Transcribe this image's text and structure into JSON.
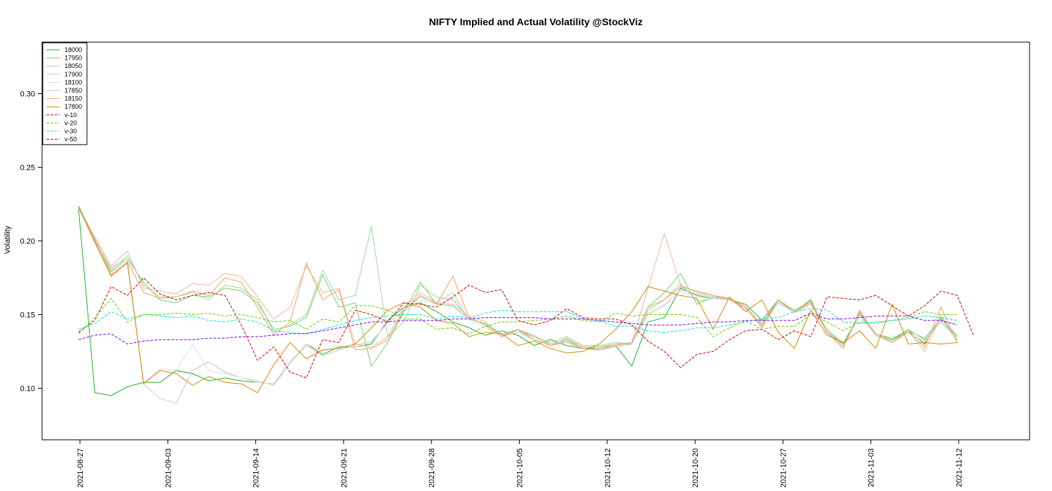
{
  "chart_data": {
    "type": "line",
    "title": "NIFTY Implied and Actual Volatility @StockViz",
    "xlabel": "",
    "ylabel": "Volatility",
    "ylim": [
      0.065,
      0.335
    ],
    "yticks": [
      "0.10",
      "0.15",
      "0.20",
      "0.25",
      "0.30"
    ],
    "x_tick_labels": [
      "2021-08-27",
      "2021-09-03",
      "2021-09-14",
      "2021-09-21",
      "2021-09-28",
      "2021-10-05",
      "2021-10-12",
      "2021-10-20",
      "2021-10-27",
      "2021-11-03",
      "2021-11-12"
    ],
    "legend_position": "top-left",
    "grid": false,
    "series": [
      {
        "name": "18000",
        "color": "#1db32a",
        "dash": "",
        "values": [
          0.222,
          0.097,
          0.095,
          0.101,
          0.104,
          0.104,
          0.112,
          0.11,
          0.105,
          0.107,
          0.105,
          0.104,
          0.103,
          0.118,
          0.13,
          0.123,
          0.128,
          0.128,
          0.13,
          0.146,
          0.155,
          0.158,
          0.152,
          0.145,
          0.141,
          0.136,
          0.139,
          0.136,
          0.129,
          0.133,
          0.129,
          0.127,
          0.127,
          0.129,
          0.115,
          0.145,
          0.148,
          0.168,
          0.163,
          0.161,
          0.16,
          0.157,
          0.146,
          0.16,
          0.152,
          0.16,
          0.138,
          0.13,
          0.15,
          0.137,
          0.133,
          0.139,
          0.13,
          0.148,
          0.133
        ]
      },
      {
        "name": "17950",
        "color": "#73d173",
        "dash": "",
        "values": [
          0.223,
          0.2,
          0.179,
          0.188,
          0.172,
          0.16,
          0.158,
          0.163,
          0.162,
          0.168,
          0.166,
          0.158,
          0.14,
          0.142,
          0.148,
          0.177,
          0.155,
          0.158,
          0.115,
          0.131,
          0.152,
          0.172,
          0.157,
          0.156,
          0.147,
          0.144,
          0.136,
          0.139,
          0.135,
          0.13,
          0.133,
          0.128,
          0.128,
          0.13,
          0.13,
          0.155,
          0.165,
          0.178,
          0.157,
          0.162,
          0.161,
          0.155,
          0.143,
          0.159,
          0.152,
          0.159,
          0.139,
          0.13,
          0.151,
          0.137,
          0.133,
          0.14,
          0.133,
          0.148,
          0.135
        ]
      },
      {
        "name": "18050",
        "color": "#9ad89a",
        "dash": "",
        "values": [
          0.224,
          0.202,
          0.18,
          0.19,
          0.17,
          0.162,
          0.162,
          0.165,
          0.16,
          0.17,
          0.168,
          0.16,
          0.138,
          0.143,
          0.15,
          0.18,
          0.16,
          0.163,
          0.21,
          0.135,
          0.145,
          0.17,
          0.162,
          0.16,
          0.147,
          0.144,
          0.137,
          0.14,
          0.135,
          0.131,
          0.135,
          0.129,
          0.129,
          0.131,
          0.13,
          0.153,
          0.16,
          0.171,
          0.159,
          0.161,
          0.161,
          0.155,
          0.144,
          0.16,
          0.153,
          0.159,
          0.14,
          0.131,
          0.15,
          0.137,
          0.134,
          0.139,
          0.134,
          0.147,
          0.136
        ]
      },
      {
        "name": "17900",
        "color": "#c8c8c8",
        "dash": "",
        "values": [
          0.222,
          0.201,
          0.182,
          0.188,
          0.103,
          0.093,
          0.09,
          0.112,
          0.118,
          0.111,
          0.107,
          0.105,
          0.102,
          0.117,
          0.129,
          0.122,
          0.126,
          0.129,
          0.132,
          0.144,
          0.153,
          0.162,
          0.158,
          0.165,
          0.146,
          0.142,
          0.135,
          0.138,
          0.133,
          0.129,
          0.131,
          0.127,
          0.126,
          0.128,
          0.13,
          0.15,
          0.156,
          0.167,
          0.164,
          0.162,
          0.16,
          0.155,
          0.142,
          0.158,
          0.151,
          0.157,
          0.138,
          0.129,
          0.149,
          0.136,
          0.132,
          0.138,
          0.132,
          0.145,
          0.133
        ]
      },
      {
        "name": "18100",
        "color": "#dcdcdc",
        "dash": "",
        "values": [
          0.222,
          0.202,
          0.181,
          0.188,
          0.104,
          0.113,
          0.112,
          0.13,
          0.112,
          0.11,
          0.107,
          0.104,
          0.103,
          0.118,
          0.13,
          0.125,
          0.129,
          0.128,
          0.131,
          0.145,
          0.152,
          0.16,
          0.157,
          0.162,
          0.146,
          0.142,
          0.135,
          0.139,
          0.133,
          0.13,
          0.132,
          0.128,
          0.127,
          0.129,
          0.131,
          0.151,
          0.157,
          0.166,
          0.162,
          0.161,
          0.16,
          0.156,
          0.143,
          0.159,
          0.151,
          0.158,
          0.139,
          0.128,
          0.15,
          0.136,
          0.131,
          0.138,
          0.131,
          0.146,
          0.133
        ]
      },
      {
        "name": "17850",
        "color": "#eeb5a0",
        "dash": "",
        "values": [
          0.222,
          0.203,
          0.183,
          0.193,
          0.168,
          0.166,
          0.164,
          0.171,
          0.17,
          0.178,
          0.176,
          0.162,
          0.147,
          0.155,
          0.183,
          0.165,
          0.168,
          0.13,
          0.128,
          0.135,
          0.155,
          0.165,
          0.158,
          0.157,
          0.149,
          0.145,
          0.136,
          0.14,
          0.136,
          0.129,
          0.134,
          0.128,
          0.127,
          0.13,
          0.131,
          0.168,
          0.205,
          0.17,
          0.165,
          0.163,
          0.16,
          0.154,
          0.143,
          0.16,
          0.152,
          0.159,
          0.138,
          0.127,
          0.152,
          0.137,
          0.132,
          0.139,
          0.125,
          0.15,
          0.132
        ]
      },
      {
        "name": "18150",
        "color": "#f0a060",
        "dash": "",
        "values": [
          0.223,
          0.201,
          0.177,
          0.186,
          0.165,
          0.161,
          0.162,
          0.166,
          0.163,
          0.175,
          0.172,
          0.155,
          0.136,
          0.145,
          0.185,
          0.16,
          0.167,
          0.126,
          0.127,
          0.133,
          0.153,
          0.163,
          0.157,
          0.176,
          0.148,
          0.143,
          0.135,
          0.14,
          0.133,
          0.129,
          0.132,
          0.127,
          0.126,
          0.129,
          0.131,
          0.155,
          0.16,
          0.169,
          0.166,
          0.163,
          0.161,
          0.155,
          0.141,
          0.16,
          0.152,
          0.158,
          0.138,
          0.127,
          0.153,
          0.136,
          0.131,
          0.138,
          0.128,
          0.155,
          0.131
        ]
      },
      {
        "name": "17800",
        "color": "#d98600",
        "dash": "",
        "values": [
          0.223,
          0.199,
          0.176,
          0.185,
          0.103,
          0.112,
          0.11,
          0.102,
          0.108,
          0.104,
          0.103,
          0.097,
          0.116,
          0.131,
          0.12,
          0.126,
          0.127,
          0.13,
          0.141,
          0.153,
          0.158,
          0.155,
          0.146,
          0.144,
          0.135,
          0.138,
          0.137,
          0.129,
          0.132,
          0.127,
          0.124,
          0.125,
          0.13,
          0.14,
          0.152,
          0.169,
          0.166,
          0.163,
          0.161,
          0.14,
          0.162,
          0.152,
          0.16,
          0.138,
          0.127,
          0.153,
          0.136,
          0.131,
          0.139,
          0.127,
          0.157,
          0.13,
          0.131,
          0.13,
          0.131
        ]
      },
      {
        "name": "v-10",
        "color": "#cc0000",
        "dash": "4,2",
        "values": [
          0.138,
          0.146,
          0.169,
          0.163,
          0.175,
          0.164,
          0.16,
          0.163,
          0.165,
          0.163,
          0.143,
          0.119,
          0.128,
          0.111,
          0.107,
          0.133,
          0.131,
          0.153,
          0.15,
          0.145,
          0.158,
          0.157,
          0.155,
          0.162,
          0.17,
          0.165,
          0.167,
          0.146,
          0.143,
          0.146,
          0.154,
          0.148,
          0.147,
          0.147,
          0.143,
          0.132,
          0.125,
          0.114,
          0.123,
          0.125,
          0.133,
          0.139,
          0.14,
          0.133,
          0.139,
          0.135,
          0.162,
          0.161,
          0.16,
          0.163,
          0.156,
          0.149,
          0.156,
          0.166,
          0.163,
          0.136
        ]
      },
      {
        "name": "v-20",
        "color": "#66cc00",
        "dash": "4,2",
        "values": [
          0.137,
          0.148,
          0.161,
          0.145,
          0.15,
          0.15,
          0.151,
          0.15,
          0.151,
          0.149,
          0.15,
          0.148,
          0.145,
          0.146,
          0.14,
          0.147,
          0.145,
          0.156,
          0.156,
          0.153,
          0.147,
          0.147,
          0.14,
          0.141,
          0.137,
          0.142,
          0.145,
          0.145,
          0.146,
          0.147,
          0.149,
          0.146,
          0.145,
          0.151,
          0.149,
          0.15,
          0.15,
          0.15,
          0.148,
          0.135,
          0.141,
          0.146,
          0.14,
          0.142,
          0.142,
          0.15,
          0.145,
          0.139,
          0.145,
          0.144,
          0.146,
          0.148,
          0.152,
          0.15,
          0.15
        ]
      },
      {
        "name": "v-30",
        "color": "#00e5e5",
        "dash": "4,2",
        "values": [
          0.14,
          0.144,
          0.152,
          0.147,
          0.15,
          0.149,
          0.148,
          0.149,
          0.146,
          0.145,
          0.147,
          0.145,
          0.139,
          0.138,
          0.137,
          0.14,
          0.143,
          0.146,
          0.148,
          0.149,
          0.15,
          0.15,
          0.147,
          0.149,
          0.148,
          0.151,
          0.153,
          0.152,
          0.152,
          0.152,
          0.152,
          0.147,
          0.146,
          0.142,
          0.142,
          0.139,
          0.138,
          0.139,
          0.141,
          0.141,
          0.143,
          0.145,
          0.147,
          0.148,
          0.152,
          0.154,
          0.153,
          0.145,
          0.144,
          0.145,
          0.146,
          0.147,
          0.149,
          0.148,
          0.146
        ]
      },
      {
        "name": "v-50",
        "color": "#7700dd",
        "dash": "4,2",
        "values": [
          0.133,
          0.136,
          0.137,
          0.13,
          0.132,
          0.133,
          0.133,
          0.133,
          0.134,
          0.134,
          0.135,
          0.135,
          0.136,
          0.137,
          0.137,
          0.139,
          0.141,
          0.143,
          0.145,
          0.145,
          0.146,
          0.146,
          0.146,
          0.147,
          0.147,
          0.148,
          0.148,
          0.148,
          0.148,
          0.147,
          0.147,
          0.147,
          0.146,
          0.145,
          0.144,
          0.143,
          0.143,
          0.143,
          0.144,
          0.145,
          0.145,
          0.146,
          0.146,
          0.146,
          0.146,
          0.151,
          0.147,
          0.147,
          0.148,
          0.149,
          0.149,
          0.149,
          0.146,
          0.146,
          0.143
        ]
      }
    ]
  }
}
